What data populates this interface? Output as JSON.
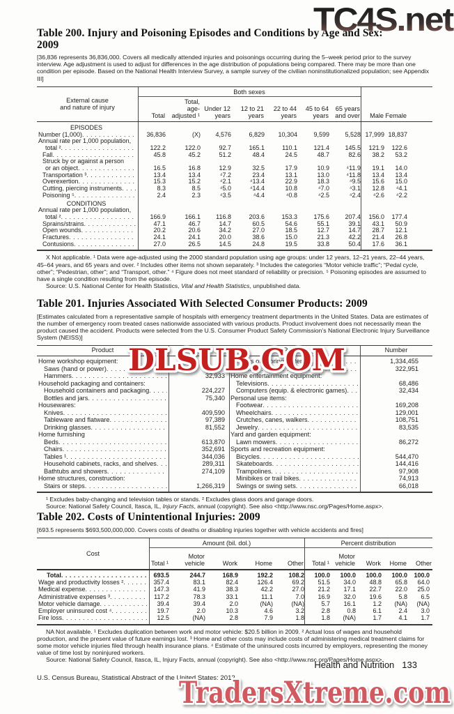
{
  "watermarks": {
    "top": "TC4S.net",
    "middle": "DLSUB.COM",
    "bottom": "TradersXtreme.com"
  },
  "table200": {
    "title": "Table 200. Injury and Poisoning Episodes and Conditions by Age and Sex:",
    "title2": "2009",
    "note": "[36,836 represents 36,836,000. Covers all medically attended injuries and poisonings occurring during the 5–week period prior to the survey interview. Age adjustment is used to adjust for differences in the age distribution of populations being compared. There may be more than one condition per episode. Based on the National Health Interview Survey, a sample survey of the civilian noninstitutionalized population; see Appendix III]",
    "stub_header": [
      "External cause",
      "and nature of injury"
    ],
    "group_header": "Both sexes",
    "columns": [
      [
        "Total"
      ],
      [
        "Total,",
        "age-",
        "adjusted ¹"
      ],
      [
        "Under 12",
        "years"
      ],
      [
        "12 to 21",
        "years"
      ],
      [
        "22 to 44",
        "years"
      ],
      [
        "45 to 64",
        "years"
      ],
      [
        "65 years",
        "and over"
      ],
      [
        "Male"
      ],
      [
        "Female"
      ]
    ],
    "rows": [
      {
        "section": "EPISODES"
      },
      {
        "label": "Number (1,000)",
        "values": [
          "36,836",
          "(X)",
          "4,576",
          "6,829",
          "10,304",
          "9,599",
          "5,528",
          "17,999",
          "18,837"
        ]
      },
      {
        "label": "Annual rate per 1,000 population,",
        "label2": "total ²",
        "values": [
          "122.2",
          "122.0",
          "92.7",
          "165.1",
          "110.1",
          "121.4",
          "145.5",
          "121.9",
          "122.6"
        ]
      },
      {
        "label": "Fall",
        "indent": 1,
        "values": [
          "45.8",
          "45.2",
          "51.2",
          "48.4",
          "24.5",
          "48.7",
          "82.6",
          "38.2",
          "53.2"
        ]
      },
      {
        "label": "Struck by or against a person",
        "label2": "or an object",
        "indent": 1,
        "values": [
          "16.5",
          "16.8",
          "12.9",
          "32.5",
          "17.9",
          "10.9",
          "⁴11.9",
          "19.1",
          "14.0"
        ]
      },
      {
        "label": "Transportation ³",
        "indent": 1,
        "values": [
          "13.4",
          "13.4",
          "⁴7.2",
          "23.4",
          "13.1",
          "13.0",
          "⁴11.8",
          "13.4",
          "13.4"
        ]
      },
      {
        "label": "Overexertion",
        "indent": 1,
        "values": [
          "15.3",
          "15.2",
          "⁴2.1",
          "⁴13.4",
          "22.9",
          "18.3",
          "⁴9.5",
          "15.6",
          "15.0"
        ]
      },
      {
        "label": "Cutting, piercing instruments",
        "indent": 1,
        "values": [
          "8.3",
          "8.5",
          "⁴5.0",
          "⁴14.4",
          "10.8",
          "⁴7.0",
          "⁴3.1",
          "12.8",
          "⁴4.1"
        ]
      },
      {
        "label": "Poisoning ⁵",
        "indent": 1,
        "values": [
          "2.4",
          "2.3",
          "⁴3.5",
          "⁴4.4",
          "⁴0.8",
          "⁴2.5",
          "⁴2.4",
          "⁴2.6",
          "⁴2.2"
        ]
      },
      {
        "section": "CONDITIONS"
      },
      {
        "label": "Annual rate per 1,000 population,",
        "label2": "total ²",
        "values": [
          "166.9",
          "166.1",
          "116.8",
          "203.6",
          "153.3",
          "175.6",
          "207.4",
          "156.0",
          "177.4"
        ]
      },
      {
        "label": "Sprains/strains",
        "indent": 1,
        "values": [
          "47.1",
          "46.7",
          "14.7",
          "60.5",
          "54.6",
          "55.1",
          "39.1",
          "43.1",
          "50.9"
        ]
      },
      {
        "label": "Open wounds",
        "indent": 1,
        "values": [
          "20.2",
          "20.6",
          "34.2",
          "27.0",
          "18.5",
          "12.7",
          "14.7",
          "28.7",
          "12.1"
        ]
      },
      {
        "label": "Fractures",
        "indent": 1,
        "values": [
          "24.1",
          "24.1",
          "20.0",
          "38.6",
          "15.0",
          "21.3",
          "42.2",
          "21.4",
          "26.8"
        ]
      },
      {
        "label": "Contusions",
        "indent": 1,
        "values": [
          "27.0",
          "26.5",
          "14.5",
          "24.8",
          "19.5",
          "33.8",
          "50.4",
          "17.6",
          "36.1"
        ]
      }
    ],
    "footnote": "X Not applicable. ¹ Data were age-adjusted using the 2000 standard population using age groups: under 12 years, 12–21 years, 22–44 years, 45–64 years, and 65 years and over. ² Includes other items not shown separately. ³ Includes the categories “Motor vehicle traffic”; “Pedal cycle, other”; “Pedestrian, other”; and “Transport, other.” ⁴ Figure does not meet standard of reliability or precision. ⁵ Poisoning episodes are assumed to have a single condition resulting from the episode.",
    "source_pre": "Source: U.S. National Center for Health Statistics, ",
    "source_italic": "Vital and Health Statistics",
    "source_post": ", unpublished data."
  },
  "table201": {
    "title": "Table 201. Injuries Associated With Selected Consumer Products: 2009",
    "note": "[Estimates calculated from a representative sample of hospitals with emergency treatment departments in the United States. Data are estimates of the number of emergency room treated cases nationwide associated with various products. Product involvement does not necessarily mean the product caused the accident. Products were selected from the U.S. Consumer Product Safety Commission’s National Electronic Injury Surveillance System (NEISS)]",
    "col_headers": [
      "Product",
      "Number",
      "Product",
      "Number"
    ],
    "left_rows": [
      {
        "cat": "Home workshop equipment:"
      },
      {
        "label": "Saws (hand or power)",
        "value": ""
      },
      {
        "label": "Hammers",
        "value": "32,933"
      },
      {
        "cat": "Household packaging and containers:"
      },
      {
        "label": "Household containers and packaging",
        "value": "224,227"
      },
      {
        "label": "Bottles and jars",
        "value": "75,340"
      },
      {
        "cat": "Housewares:"
      },
      {
        "label": "Knives",
        "value": "409,590"
      },
      {
        "label": "Tableware and flatware",
        "value": "97,389"
      },
      {
        "label": "Drinking glasses",
        "value": "81,552"
      },
      {
        "cat": "Home furnishing"
      },
      {
        "label": "Beds",
        "value": "613,870"
      },
      {
        "label": "Chairs",
        "value": "352,691"
      },
      {
        "label": "Tables ¹",
        "value": "344,036"
      },
      {
        "label": "Household cabinets, racks, and shelves",
        "value": "289,311"
      },
      {
        "label": "Bathtubs and showers",
        "value": "274,109"
      },
      {
        "cat": "Home structures, construction:"
      },
      {
        "label": "Stairs or steps",
        "value": "1,266,319"
      }
    ],
    "right_rows": [
      {
        "label": "Floors or flooring materials",
        "value": "1,334,455"
      },
      {
        "label": "Doors ²",
        "value": "322,951"
      },
      {
        "cat": "Home entertainment equipment:"
      },
      {
        "label": "Televisions",
        "value": "68,486"
      },
      {
        "label": "Computers (equip. & electronic games)",
        "value": "32,434"
      },
      {
        "cat": "Personal use items:"
      },
      {
        "label": "Footwear",
        "value": "169,208"
      },
      {
        "label": "Wheelchairs",
        "value": "129,001"
      },
      {
        "label": "Crutches, canes, walkers",
        "value": "108,751"
      },
      {
        "label": "Jewelry",
        "value": "83,535"
      },
      {
        "cat": "Yard and garden equipment:"
      },
      {
        "label": "Lawn mowers",
        "value": "86,272"
      },
      {
        "cat": "Sports and recreation equipment:"
      },
      {
        "label": "Bicycles",
        "value": "544,470"
      },
      {
        "label": "Skateboards",
        "value": "144,416"
      },
      {
        "label": "Trampolines",
        "value": "97,908"
      },
      {
        "label": "Minibikes or trail bikes",
        "value": "74,913"
      },
      {
        "label": "Swings or swing sets",
        "value": "66,018"
      }
    ],
    "footnote": "¹ Excludes baby-changing and television tables or stands. ² Excludes glass doors and garage doors.",
    "source_pre": "Source: National Safety Council, Itasca, IL, ",
    "source_italic": "Injury Facts",
    "source_post": ", annual (copyright). See also <http://www.nsc.org/Pages/Home.aspx>."
  },
  "table202": {
    "title": "Table 202. Costs of Unintentional Injuries: 2009",
    "note": "[693.5 represents $693,500,000,000. Covers costs of deaths or disabling injuries together with vehicle accidents and fires]",
    "stub_header": "Cost",
    "group_headers": [
      "Amount (bil. dol.)",
      "Percent distribution"
    ],
    "columns": [
      [
        "Total ¹"
      ],
      [
        "Motor",
        "vehicle"
      ],
      [
        "Work"
      ],
      [
        "Home"
      ],
      [
        "Other"
      ],
      [
        "Total ¹"
      ],
      [
        "Motor",
        "vehicle"
      ],
      [
        "Work"
      ],
      [
        "Home"
      ],
      [
        "Other"
      ]
    ],
    "rows": [
      {
        "label": "Total",
        "bold": true,
        "values": [
          "693.5",
          "244.7",
          "168.9",
          "192.2",
          "108.2",
          "100.0",
          "100.0",
          "100.0",
          "100.0",
          "100.0"
        ]
      },
      {
        "label": "Wage and productivity losses ²",
        "values": [
          "357.4",
          "83.1",
          "82.4",
          "126.4",
          "69.2",
          "51.5",
          "34.0",
          "48.8",
          "65.8",
          "64.0"
        ]
      },
      {
        "label": "Medical expense",
        "values": [
          "147.3",
          "41.9",
          "38.3",
          "42.2",
          "27.0",
          "21.2",
          "17.1",
          "22.7",
          "22.0",
          "25.0"
        ]
      },
      {
        "label": "Administrative expenses ³",
        "values": [
          "117.2",
          "78.3",
          "33.1",
          "11.1",
          "7.0",
          "16.9",
          "32.0",
          "19.6",
          "5.8",
          "6.5"
        ]
      },
      {
        "label": "Motor vehicle damage",
        "values": [
          "39.4",
          "39.4",
          "2.0",
          "(NA)",
          "(NA)",
          "5.7",
          "16.1",
          "1.2",
          "(NA)",
          "(NA)"
        ]
      },
      {
        "label": "Employer uninsured cost ⁴",
        "values": [
          "19.7",
          "2.0",
          "10.3",
          "4.6",
          "3.2",
          "2.8",
          "0.8",
          "6.1",
          "2.4",
          "3.0"
        ]
      },
      {
        "label": "Fire loss",
        "values": [
          "12.5",
          "(NA)",
          "2.8",
          "7.9",
          "1.8",
          "1.8",
          "(NA)",
          "1.7",
          "4.1",
          "1.7"
        ]
      }
    ],
    "footnote": "NA Not available. ¹ Excludes duplication between work and motor vehicle: $20.5 billion in 2009. ² Actual loss of wages and household production, and the present value of future earnings lost. ³ Home and other costs may include costs of administering medical treatment claims for some motor vehicle injuries filed through health insurance plans. ⁴ Estimate of the uninsured costs incurred by employers, representing the money value of time lost by noninjured workers.",
    "source_pre": "Source: National Safety Council, Itasca, IL, ",
    "source_italic": "Injury Facts",
    "source_post": ", annual (copyright). See also <http://www.nsc.org/Pages/Home.aspx>."
  },
  "footer": {
    "section": "Health and Nutrition",
    "page": "133",
    "credit": "U.S. Census Bureau, Statistical Abstract of the United States: 2012"
  }
}
